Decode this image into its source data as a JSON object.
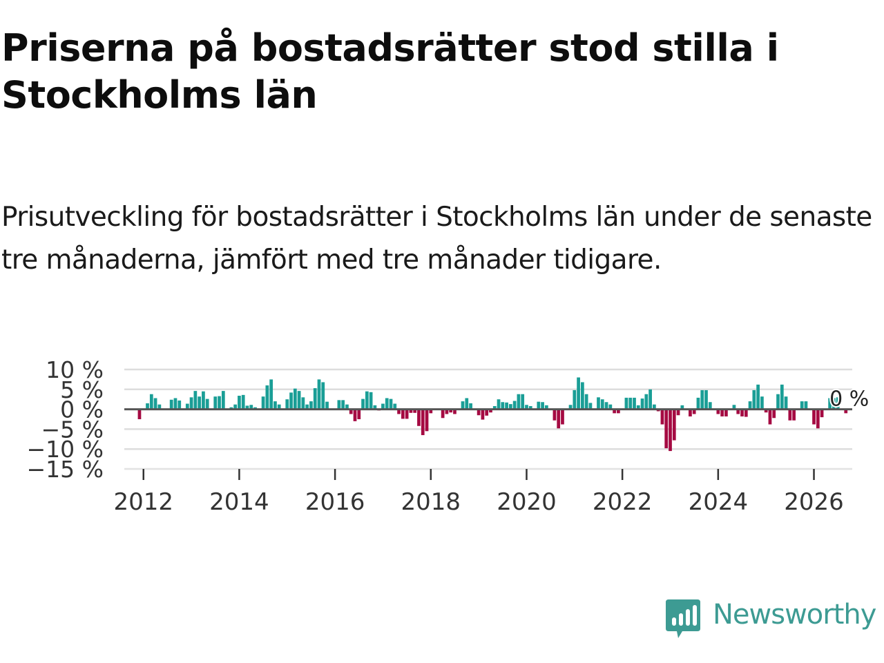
{
  "header": {
    "title": "Priserna på bostadsrätter stod stilla i Stockholms län",
    "subtitle": "Prisutveckling för bostadsrätter i Stockholms län under de senaste tre månaderna, jämfört med tre månader tidigare."
  },
  "brand": {
    "name": "Newsworthy",
    "icon": "newsworthy-logo-icon",
    "color": "#3d9b93"
  },
  "colors": {
    "positive": "#1a9e96",
    "negative": "#a50a42",
    "grid": "#dddddd",
    "zero_line": "#555555"
  },
  "chart_data": {
    "type": "bar",
    "title": "Priserna på bostadsrätter stod stilla i Stockholms län",
    "subtitle": "Prisutveckling för bostadsrätter i Stockholms län under de senaste tre månaderna, jämfört med tre månader tidigare.",
    "xlabel": "",
    "ylabel": "",
    "grid": true,
    "x_start": "2011-12",
    "x_interval": "month",
    "xlim": [
      2011.6,
      2026.8
    ],
    "x_ticks": [
      2012,
      2014,
      2016,
      2018,
      2020,
      2022,
      2024,
      2026
    ],
    "x_tick_labels": [
      "2012",
      "2014",
      "2016",
      "2018",
      "2020",
      "2022",
      "2024",
      "2026"
    ],
    "ylim": [
      -15,
      10
    ],
    "y_ticks": [
      10,
      5,
      0,
      -5,
      -10,
      -15
    ],
    "y_tick_labels": [
      "10 %",
      "5 %",
      "0 %",
      "−5 %",
      "−10 %",
      "−15 %"
    ],
    "annotation": "0 %",
    "values": [
      -2.5,
      0,
      1.5,
      3.8,
      2.8,
      1.2,
      0,
      0,
      2.4,
      2.8,
      2.2,
      0,
      1.4,
      3,
      4.6,
      3.2,
      4.5,
      2.6,
      0,
      3.2,
      3.3,
      4.6,
      0,
      0.5,
      1.2,
      3.4,
      3.6,
      0.9,
      1.1,
      0.5,
      0,
      3.2,
      6,
      7.5,
      2,
      1.2,
      0,
      2.5,
      4.2,
      5.2,
      4.6,
      3,
      1.2,
      2,
      5.3,
      7.5,
      6.8,
      1.9,
      0,
      0,
      2.3,
      2.3,
      1.2,
      -1.2,
      -3,
      -2.5,
      2.6,
      4.5,
      4.3,
      1,
      -0.3,
      1.4,
      2.8,
      2.6,
      1.4,
      -1.2,
      -2.4,
      -2.4,
      -0.9,
      -0.9,
      -4.2,
      -6.5,
      -5.5,
      -1,
      0,
      0,
      -2.2,
      -1.2,
      -0.8,
      -1.2,
      0,
      2,
      2.8,
      1.5,
      0,
      -1.5,
      -2.6,
      -1.6,
      -0.8,
      0.8,
      2.5,
      1.8,
      1.7,
      1.3,
      2.1,
      3.8,
      3.8,
      1.1,
      0.8,
      0,
      1.9,
      1.8,
      1,
      0,
      -2.8,
      -4.8,
      -3.8,
      0,
      1.1,
      4.8,
      8,
      6.8,
      3.8,
      1.6,
      0,
      3,
      2.5,
      1.8,
      1.2,
      -1,
      -1,
      0,
      2.9,
      2.9,
      2.9,
      1,
      2.7,
      3.8,
      5,
      1.2,
      -0.5,
      -3.8,
      -9.8,
      -10.5,
      -7.8,
      -1.5,
      1,
      0,
      -1.8,
      -1.2,
      2.9,
      4.8,
      4.8,
      1.8,
      0,
      -1.2,
      -1.8,
      -1.8,
      0,
      1.1,
      -1.2,
      -1.8,
      -1.9,
      2,
      4.8,
      6.2,
      3.2,
      -0.8,
      -3.8,
      -2.2,
      3.8,
      6.2,
      3.2,
      -2.8,
      -2.8,
      0,
      2,
      2,
      0,
      -3.8,
      -4.8,
      -2,
      0,
      2.8,
      2.8,
      3,
      0,
      -1
    ]
  }
}
